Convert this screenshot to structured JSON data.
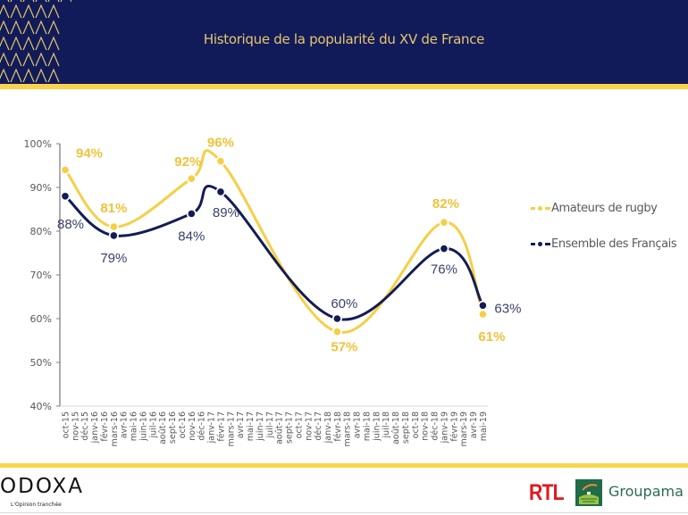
{
  "header": {
    "title": "Historique de la popularité du XV de France"
  },
  "colors": {
    "navy": "#121b5a",
    "rugby": "#f5cf46",
    "ensemble": "#141c55",
    "accent": "#f9d34e"
  },
  "chart_data": {
    "type": "line",
    "title": "Historique de la popularité du XV de France",
    "xlabel": "",
    "ylabel": "",
    "ylim": [
      40,
      100
    ],
    "y_ticks": [
      "40%",
      "50%",
      "60%",
      "70%",
      "80%",
      "90%",
      "100%"
    ],
    "y_tick_values": [
      40,
      50,
      60,
      70,
      80,
      90,
      100
    ],
    "x": [
      "oct-15",
      "nov-15",
      "déc-15",
      "janv-16",
      "févr-16",
      "mars-16",
      "avr-16",
      "mai-16",
      "juin-16",
      "juil-16",
      "août-16",
      "sept-16",
      "oct-16",
      "nov-16",
      "déc-16",
      "janv-17",
      "févr-17",
      "mars-17",
      "avr-17",
      "mai-17",
      "juin-17",
      "juil-17",
      "août-17",
      "sept-17",
      "oct-17",
      "nov-17",
      "déc-17",
      "janv-18",
      "févr-18",
      "mars-18",
      "avr-18",
      "mai-18",
      "juin-18",
      "juil-18",
      "août-18",
      "sept-18",
      "oct-18",
      "nov-18",
      "déc-18",
      "janv-19",
      "févr-19",
      "mars-19",
      "avr-19",
      "mai-19"
    ],
    "legend_position": "right",
    "grid": false,
    "series": [
      {
        "name": "Amateurs de rugby",
        "color": "#f5cf46",
        "points": [
          {
            "x": "oct-15",
            "y": 94,
            "label": "94%"
          },
          {
            "x": "mars-16",
            "y": 81,
            "label": "81%"
          },
          {
            "x": "nov-16",
            "y": 92,
            "label": "92%"
          },
          {
            "x": "févr-17",
            "y": 96,
            "label": "96%"
          },
          {
            "x": "févr-18",
            "y": 57,
            "label": "57%"
          },
          {
            "x": "janv-19",
            "y": 82,
            "label": "82%"
          },
          {
            "x": "mai-19",
            "y": 61,
            "label": "61%"
          }
        ]
      },
      {
        "name": "Ensemble des Français",
        "color": "#141c55",
        "points": [
          {
            "x": "oct-15",
            "y": 88,
            "label": "88%"
          },
          {
            "x": "mars-16",
            "y": 79,
            "label": "79%"
          },
          {
            "x": "nov-16",
            "y": 84,
            "label": "84%"
          },
          {
            "x": "févr-17",
            "y": 89,
            "label": "89%"
          },
          {
            "x": "févr-18",
            "y": 60,
            "label": "60%"
          },
          {
            "x": "janv-19",
            "y": 76,
            "label": "76%"
          },
          {
            "x": "mai-19",
            "y": 63,
            "label": "63%"
          }
        ]
      }
    ]
  },
  "footer": {
    "brand": "ODOXA",
    "tagline": "L'Opinion tranchée",
    "partner1": "RTL",
    "partner2": "Groupama"
  }
}
